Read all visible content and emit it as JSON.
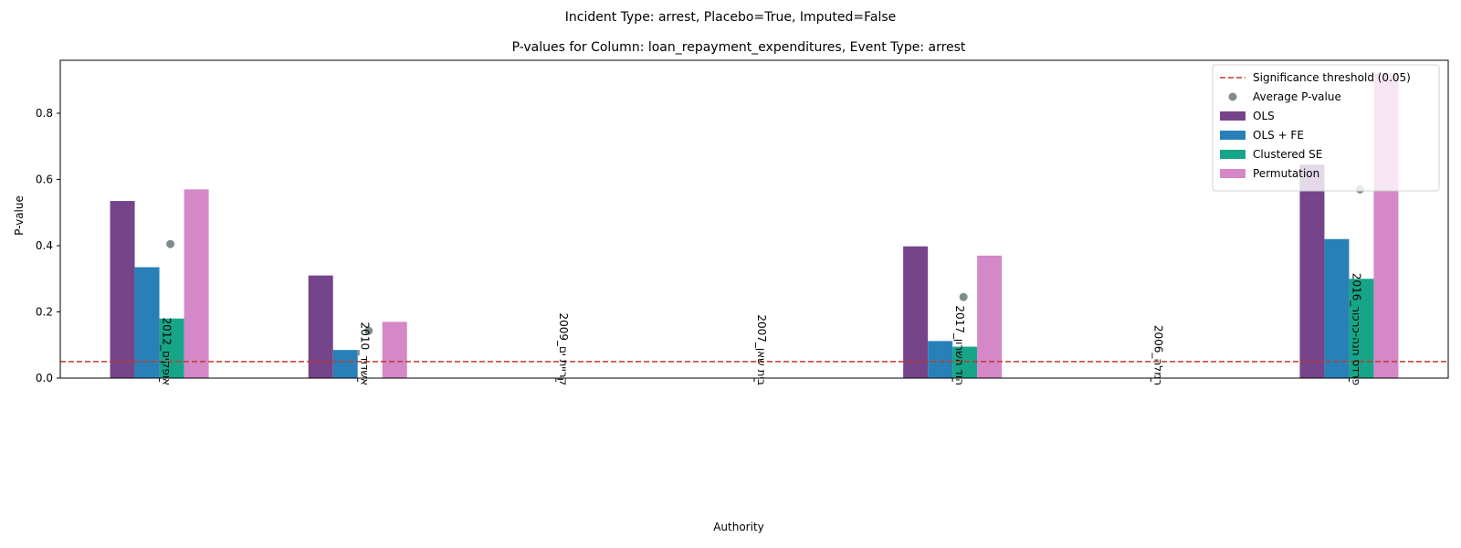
{
  "figure": {
    "suptitle": "Incident Type: arrest, Placebo=True, Imputed=False"
  },
  "chart_data": {
    "type": "bar",
    "title": "P-values for Column: loan_repayment_expenditures, Event Type: arrest",
    "xlabel": "Authority",
    "ylabel": "P-value",
    "ylim": [
      0,
      0.96
    ],
    "yticks": [
      0.0,
      0.2,
      0.4,
      0.6,
      0.8
    ],
    "ytick_labels": [
      "0.0",
      "0.2",
      "0.4",
      "0.6",
      "0.8"
    ],
    "grid": false,
    "legend_position": "top-right",
    "categories": [
      "אופקים_2012",
      "אשדוד_2010",
      "קריית ים_2009",
      "בית שאן_2007",
      "הוד השרון_2017",
      "רמלה_2006",
      "פרדס חנה-כרכור_2016"
    ],
    "series": [
      {
        "name": "OLS",
        "color": "#76448a",
        "values": [
          0.535,
          0.31,
          null,
          null,
          0.398,
          null,
          0.645
        ]
      },
      {
        "name": "OLS + FE",
        "color": "#2980b9",
        "values": [
          0.335,
          0.085,
          null,
          null,
          0.112,
          null,
          0.42
        ]
      },
      {
        "name": "Clustered SE",
        "color": "#17a589",
        "values": [
          0.18,
          null,
          null,
          null,
          0.095,
          null,
          0.3
        ]
      },
      {
        "name": "Permutation",
        "color": "#d488c8",
        "values": [
          0.57,
          0.17,
          null,
          null,
          0.37,
          null,
          0.92
        ]
      }
    ],
    "average": {
      "name": "Average P-value",
      "color": "#7f8c8d",
      "values": [
        0.405,
        0.143,
        null,
        null,
        0.245,
        null,
        0.57
      ]
    },
    "threshold": {
      "name": "Significance threshold (0.05)",
      "value": 0.05,
      "color": "#c0392b"
    }
  }
}
